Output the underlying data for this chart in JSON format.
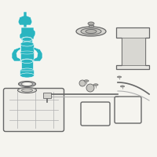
{
  "bg": "#f5f4ef",
  "teal": "#2ab5c0",
  "teal_dark": "#1e9aa5",
  "gray": "#7a7a7a",
  "lgray": "#b0b0b0",
  "dgray": "#555555",
  "outline": "#666666",
  "figsize": [
    2.0,
    2.0
  ],
  "dpi": 100
}
